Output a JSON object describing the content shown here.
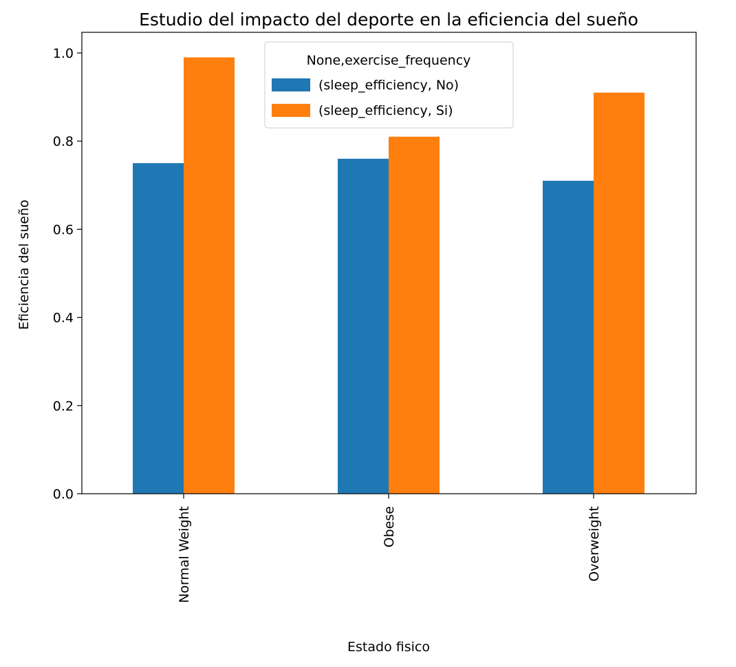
{
  "chart_data": {
    "type": "bar",
    "title": "Estudio del impacto del deporte en la eficiencia del sueño",
    "xlabel": "Estado fisico",
    "ylabel": "Eficiencia del sueño",
    "categories": [
      "Normal Weight",
      "Obese",
      "Overweight"
    ],
    "series": [
      {
        "name": "(sleep_efficiency, No)",
        "values": [
          0.75,
          0.76,
          0.71
        ],
        "color": "#1f77b4"
      },
      {
        "name": "(sleep_efficiency, Si)",
        "values": [
          0.99,
          0.81,
          0.91
        ],
        "color": "#ff7f0e"
      }
    ],
    "ylim": [
      0.0,
      1.0
    ],
    "yticks": [
      "0.0",
      "0.2",
      "0.4",
      "0.6",
      "0.8",
      "1.0"
    ],
    "legend": {
      "title": "None,exercise_frequency",
      "placement": "upper-center"
    },
    "grid": false
  }
}
